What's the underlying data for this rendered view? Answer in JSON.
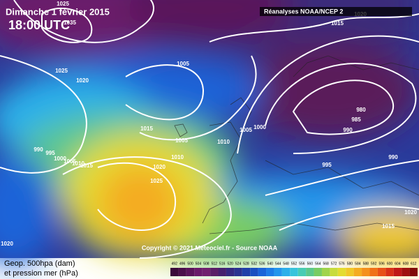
{
  "header": {
    "date": "Dimanche 1 février 2015",
    "time": "18:00 UTC",
    "source": "Réanalyses NOAA/NCEP 2"
  },
  "copyright": "Copyright © 2021 Meteociel.fr - Source NOAA",
  "legend": {
    "line1": "Geop. 500hpa (dam)",
    "line2": "et pression mer (hPa)",
    "scale": [
      {
        "value": 492,
        "color": "#3a0a3a"
      },
      {
        "value": 496,
        "color": "#4a0f4a"
      },
      {
        "value": 500,
        "color": "#5a145a"
      },
      {
        "value": 504,
        "color": "#6a1a6a"
      },
      {
        "value": 508,
        "color": "#70206e"
      },
      {
        "value": 512,
        "color": "#5a1f66"
      },
      {
        "value": 516,
        "color": "#46206e"
      },
      {
        "value": 520,
        "color": "#342880"
      },
      {
        "value": 524,
        "color": "#2a3290"
      },
      {
        "value": 528,
        "color": "#2040a8"
      },
      {
        "value": 532,
        "color": "#1a50c0"
      },
      {
        "value": 536,
        "color": "#1a64d8"
      },
      {
        "value": 540,
        "color": "#1e7ce6"
      },
      {
        "value": 544,
        "color": "#2496ec"
      },
      {
        "value": 548,
        "color": "#2cb0ea"
      },
      {
        "value": 552,
        "color": "#38c4dc"
      },
      {
        "value": 556,
        "color": "#48ccb4"
      },
      {
        "value": 560,
        "color": "#5cc88c"
      },
      {
        "value": 564,
        "color": "#78cc64"
      },
      {
        "value": 568,
        "color": "#a0d44c"
      },
      {
        "value": 572,
        "color": "#c8dc3c"
      },
      {
        "value": 576,
        "color": "#e4dc30"
      },
      {
        "value": 580,
        "color": "#f0c828"
      },
      {
        "value": 584,
        "color": "#f4ac20"
      },
      {
        "value": 588,
        "color": "#f4901c"
      },
      {
        "value": 592,
        "color": "#f07018"
      },
      {
        "value": 596,
        "color": "#e85018"
      },
      {
        "value": 600,
        "color": "#d83018"
      },
      {
        "value": 604,
        "color": "#c01818"
      },
      {
        "value": 608,
        "color": "#a01010"
      },
      {
        "value": 612,
        "color": "#800808"
      }
    ]
  },
  "isobars": [
    1025,
    1035,
    1025,
    1020,
    1005,
    1015,
    1020,
    1015,
    1005,
    1010,
    1005,
    1000,
    990,
    995,
    1000,
    1005,
    1010,
    1015,
    1020,
    1010,
    1025,
    980,
    985,
    990,
    995,
    990,
    1020,
    1015,
    1020
  ]
}
